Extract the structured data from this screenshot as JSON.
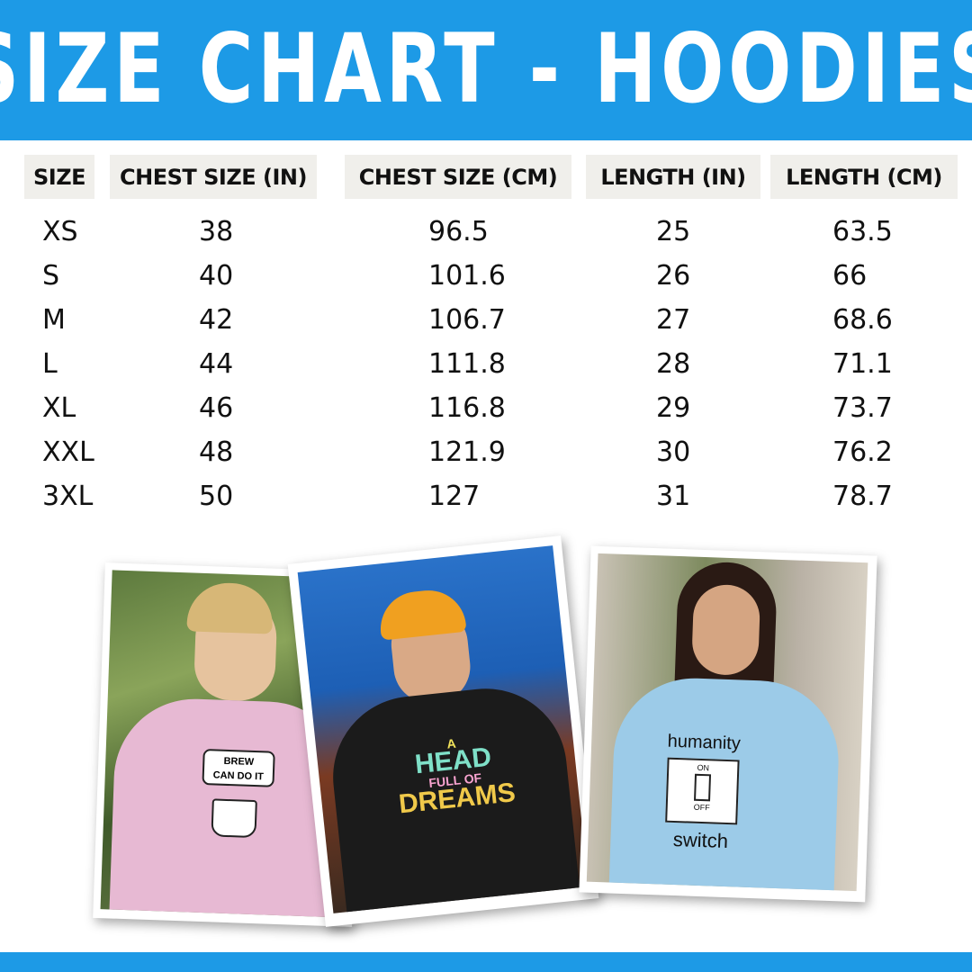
{
  "title": "SIZE CHART - HOODIES",
  "colors": {
    "brand": "#1d9ae6",
    "header_cell": "#f0efeb"
  },
  "table": {
    "headers": [
      "SIZE",
      "CHEST SIZE (IN)",
      "CHEST SIZE (CM)",
      "LENGTH (IN)",
      "LENGTH (CM)"
    ],
    "rows": [
      [
        "XS",
        "38",
        "96.5",
        "25",
        "63.5"
      ],
      [
        "S",
        "40",
        "101.6",
        "26",
        "66"
      ],
      [
        "M",
        "42",
        "106.7",
        "27",
        "68.6"
      ],
      [
        "L",
        "44",
        "111.8",
        "28",
        "71.1"
      ],
      [
        "XL",
        "46",
        "116.8",
        "29",
        "73.7"
      ],
      [
        "XXL",
        "48",
        "121.9",
        "30",
        "76.2"
      ],
      [
        "3XL",
        "50",
        "127",
        "31",
        "78.7"
      ]
    ]
  },
  "photos": [
    {
      "hoodie_color": "#e7b9d3",
      "print": [
        "BREW",
        "CAN DO IT"
      ]
    },
    {
      "hoodie_color": "#1b1b1b",
      "print": [
        "A",
        "HEAD",
        "FULL OF",
        "DREAMS"
      ]
    },
    {
      "hoodie_color": "#9ccbe8",
      "print": [
        "humanity",
        "ON",
        "OFF",
        "switch"
      ]
    }
  ]
}
